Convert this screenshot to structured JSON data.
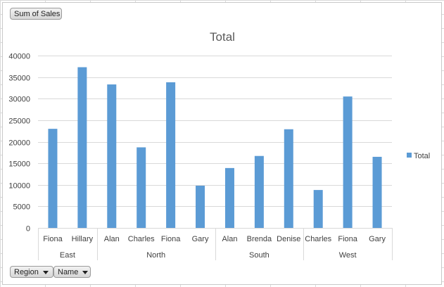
{
  "field_buttons": {
    "values_label": "Sum of Sales",
    "axis_fields": [
      "Region",
      "Name"
    ]
  },
  "chart_data": {
    "type": "bar",
    "title": "Total",
    "xlabel": "",
    "ylabel": "",
    "ylim": [
      0,
      40000
    ],
    "yticks": [
      0,
      5000,
      10000,
      15000,
      20000,
      25000,
      30000,
      35000,
      40000
    ],
    "grid": true,
    "legend_position": "right",
    "groups": [
      {
        "name": "East",
        "categories": [
          "Fiona",
          "Hillary"
        ]
      },
      {
        "name": "North",
        "categories": [
          "Alan",
          "Charles",
          "Fiona",
          "Gary"
        ]
      },
      {
        "name": "South",
        "categories": [
          "Alan",
          "Brenda",
          "Denise"
        ]
      },
      {
        "name": "West",
        "categories": [
          "Charles",
          "Fiona",
          "Gary"
        ]
      }
    ],
    "categories": [
      "Fiona",
      "Hillary",
      "Alan",
      "Charles",
      "Fiona",
      "Gary",
      "Alan",
      "Brenda",
      "Denise",
      "Charles",
      "Fiona",
      "Gary"
    ],
    "series": [
      {
        "name": "Total",
        "color": "#5b9bd5",
        "values": [
          23000,
          37300,
          33300,
          18700,
          33800,
          9800,
          13900,
          16700,
          22900,
          8800,
          30500,
          16500
        ]
      }
    ]
  }
}
